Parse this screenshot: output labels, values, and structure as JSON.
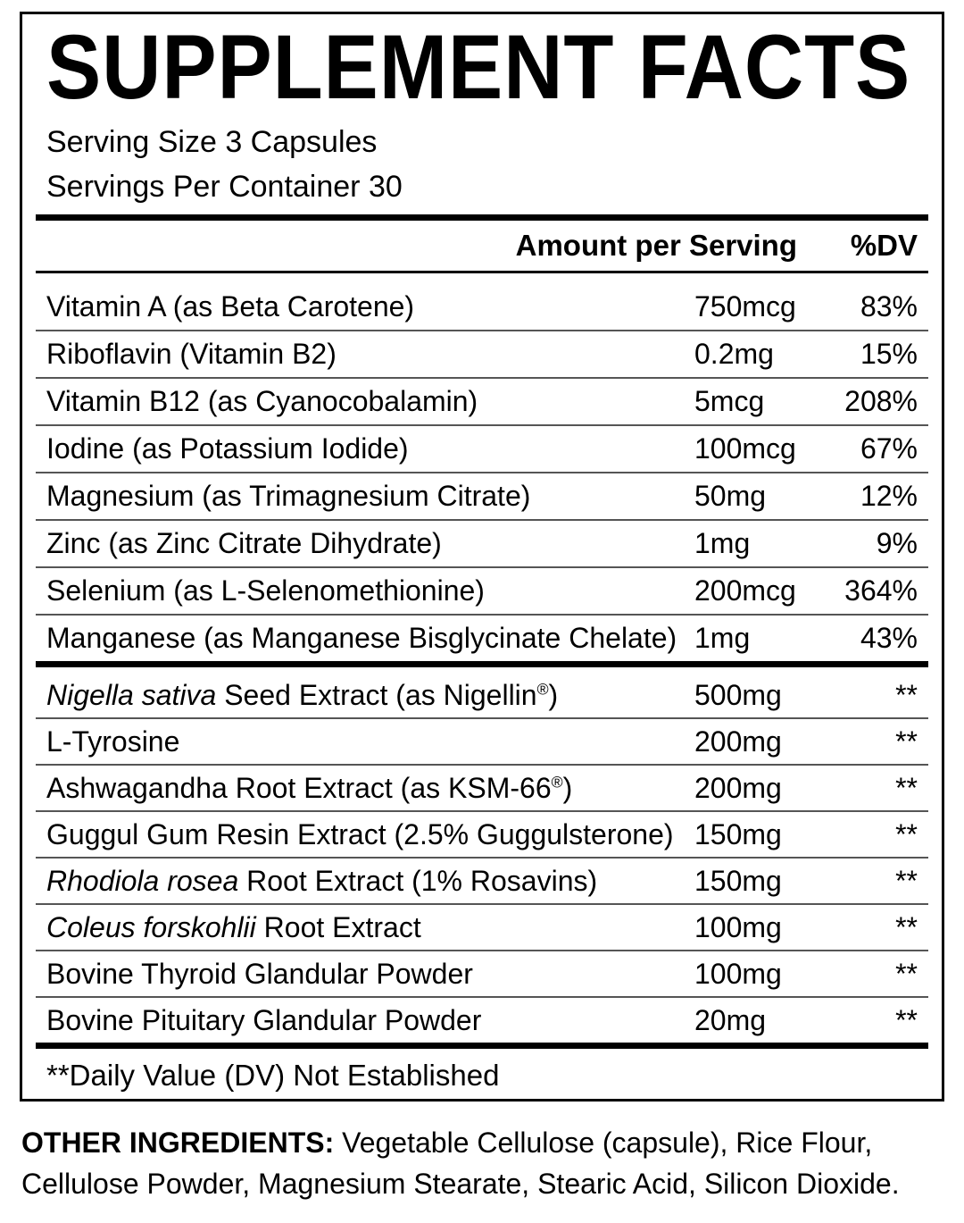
{
  "label": {
    "title": "SUPPLEMENT FACTS",
    "serving_size": "Serving Size 3 Capsules",
    "servings_per_container": "Servings Per Container 30",
    "columns": {
      "amount": "Amount per Serving",
      "dv": "%DV"
    },
    "rows": [
      {
        "name": "Vitamin A (as Beta Carotene)",
        "amount": "750mcg",
        "dv": "83%"
      },
      {
        "name": "Riboflavin (Vitamin B2)",
        "amount": "0.2mg",
        "dv": "15%"
      },
      {
        "name": "Vitamin B12 (as Cyanocobalamin)",
        "amount": "5mcg",
        "dv": "208%"
      },
      {
        "name": "Iodine (as Potassium Iodide)",
        "amount": "100mcg",
        "dv": "67%"
      },
      {
        "name": "Magnesium (as Trimagnesium Citrate)",
        "amount": "50mg",
        "dv": "12%"
      },
      {
        "name": "Zinc (as Zinc Citrate Dihydrate)",
        "amount": "1mg",
        "dv": "9%"
      },
      {
        "name": "Selenium (as L-Selenomethionine)",
        "amount": "200mcg",
        "dv": "364%"
      },
      {
        "name": "Manganese (as Manganese Bisglycinate Chelate)",
        "amount": "1mg",
        "dv": "43%"
      }
    ],
    "botanical_rows": [
      {
        "name_italic": "Nigella sativa",
        "name": " Seed Extract (as Nigellin®)",
        "amount": "500mg",
        "dv": "**"
      },
      {
        "name": "L-Tyrosine",
        "amount": "200mg",
        "dv": "**"
      },
      {
        "name": "Ashwagandha Root Extract (as KSM-66®)",
        "amount": "200mg",
        "dv": "**"
      },
      {
        "name": "Guggul Gum Resin Extract (2.5% Guggulsterone)",
        "amount": "150mg",
        "dv": "**"
      },
      {
        "name_italic": "Rhodiola rosea",
        "name": " Root Extract (1% Rosavins)",
        "amount": "150mg",
        "dv": "**"
      },
      {
        "name_italic": "Coleus forskohlii",
        "name": " Root Extract",
        "amount": "100mg",
        "dv": "**"
      },
      {
        "name": "Bovine Thyroid Glandular Powder",
        "amount": "100mg",
        "dv": "**"
      },
      {
        "name": "Bovine Pituitary Glandular Powder",
        "amount": "20mg",
        "dv": "**"
      }
    ],
    "footnote": "**Daily Value (DV) Not Established",
    "other_ingredients": {
      "label": "OTHER INGREDIENTS:",
      "line1": " Vegetable Cellulose (capsule), Rice Flour,",
      "line2": "Cellulose Powder, Magnesium Stearate, Stearic Acid, Silicon Dioxide."
    },
    "colors": {
      "text": "#000000",
      "background": "#ffffff",
      "thin_rule": "#555555",
      "thick_rule": "#000000"
    }
  }
}
